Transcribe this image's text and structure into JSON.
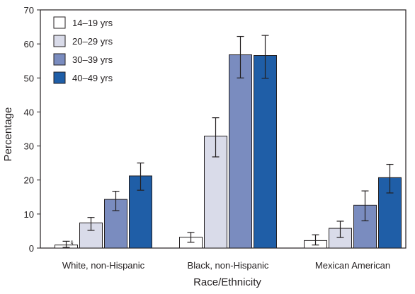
{
  "chart_data": {
    "type": "bar",
    "title": "",
    "xlabel": "Race/Ethnicity",
    "ylabel": "Percentage",
    "ylim": [
      0,
      70
    ],
    "yticks": [
      0,
      10,
      20,
      30,
      40,
      50,
      60,
      70
    ],
    "grid": false,
    "legend_position": "top-left",
    "categories": [
      "White, non-Hispanic",
      "Black, non-Hispanic",
      "Mexican American"
    ],
    "series": [
      {
        "name": "14–19 yrs",
        "color": "#ffffff",
        "values": [
          0.9,
          3.2,
          2.2
        ],
        "error_low": [
          0.2,
          1.7,
          0.9
        ],
        "error_high": [
          2.0,
          4.6,
          3.9
        ]
      },
      {
        "name": "20–29 yrs",
        "color": "#d9dbe9",
        "values": [
          7.4,
          32.9,
          5.8
        ],
        "error_low": [
          5.2,
          26.8,
          3.1
        ],
        "error_high": [
          9.0,
          38.3,
          7.9
        ]
      },
      {
        "name": "30–39 yrs",
        "color": "#7a8cbf",
        "values": [
          14.3,
          56.8,
          12.6
        ],
        "error_low": [
          11.0,
          50.0,
          8.0
        ],
        "error_high": [
          16.7,
          62.2,
          16.8
        ]
      },
      {
        "name": "40–49 yrs",
        "color": "#1f5ea7",
        "values": [
          21.2,
          56.6,
          20.7
        ],
        "error_low": [
          17.0,
          49.9,
          16.2
        ],
        "error_high": [
          25.0,
          62.5,
          24.6
        ]
      }
    ],
    "annotations": [
      {
        "text": "§",
        "series": 0,
        "category": 0
      }
    ]
  }
}
